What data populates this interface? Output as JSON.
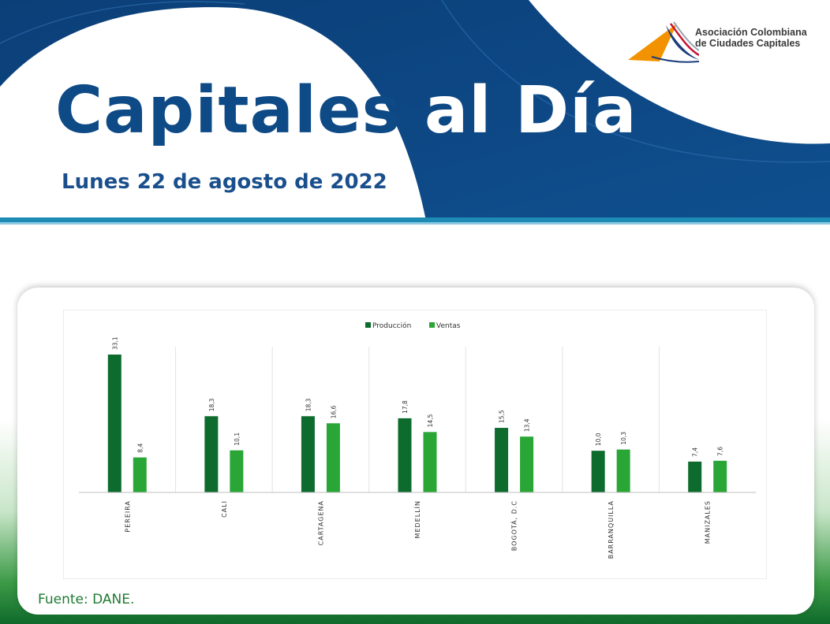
{
  "header": {
    "title_part1": "Capitales",
    "title_part2": "al Día",
    "date": "Lunes 22 de agosto de 2022",
    "logo_text_line1": "Asociación Colombiana",
    "logo_text_line2": "de Ciudades Capitales",
    "colors": {
      "navy": "#0e4a86",
      "teal": "#1d8bb4",
      "logo_orange": "#f39200"
    }
  },
  "source": "Fuente: DANE.",
  "colors": {
    "produccion": "#0d6b2e",
    "ventas": "#2aa637",
    "footer_green": "#1f7a32"
  },
  "chart_data": {
    "type": "bar",
    "categories": [
      "PEREIRA",
      "CALI",
      "CARTAGENA",
      "MEDELLÍN",
      "BOGOTÁ, D.C",
      "BARRANQUILLA",
      "MANIZALES"
    ],
    "series": [
      {
        "name": "Producción",
        "values": [
          33.1,
          18.3,
          18.3,
          17.8,
          15.5,
          10.0,
          7.4
        ],
        "labels": [
          "33,1",
          "18,3",
          "18,3",
          "17,8",
          "15,5",
          "10,0",
          "7,4"
        ]
      },
      {
        "name": "Ventas",
        "values": [
          8.4,
          10.1,
          16.6,
          14.5,
          13.4,
          10.3,
          7.6
        ],
        "labels": [
          "8,4",
          "10,1",
          "16,6",
          "14,5",
          "13,4",
          "10,3",
          "7,6"
        ]
      }
    ],
    "title": "",
    "xlabel": "",
    "ylabel": "",
    "ylim": [
      0,
      33.1
    ],
    "legend": "top",
    "grid": false
  }
}
